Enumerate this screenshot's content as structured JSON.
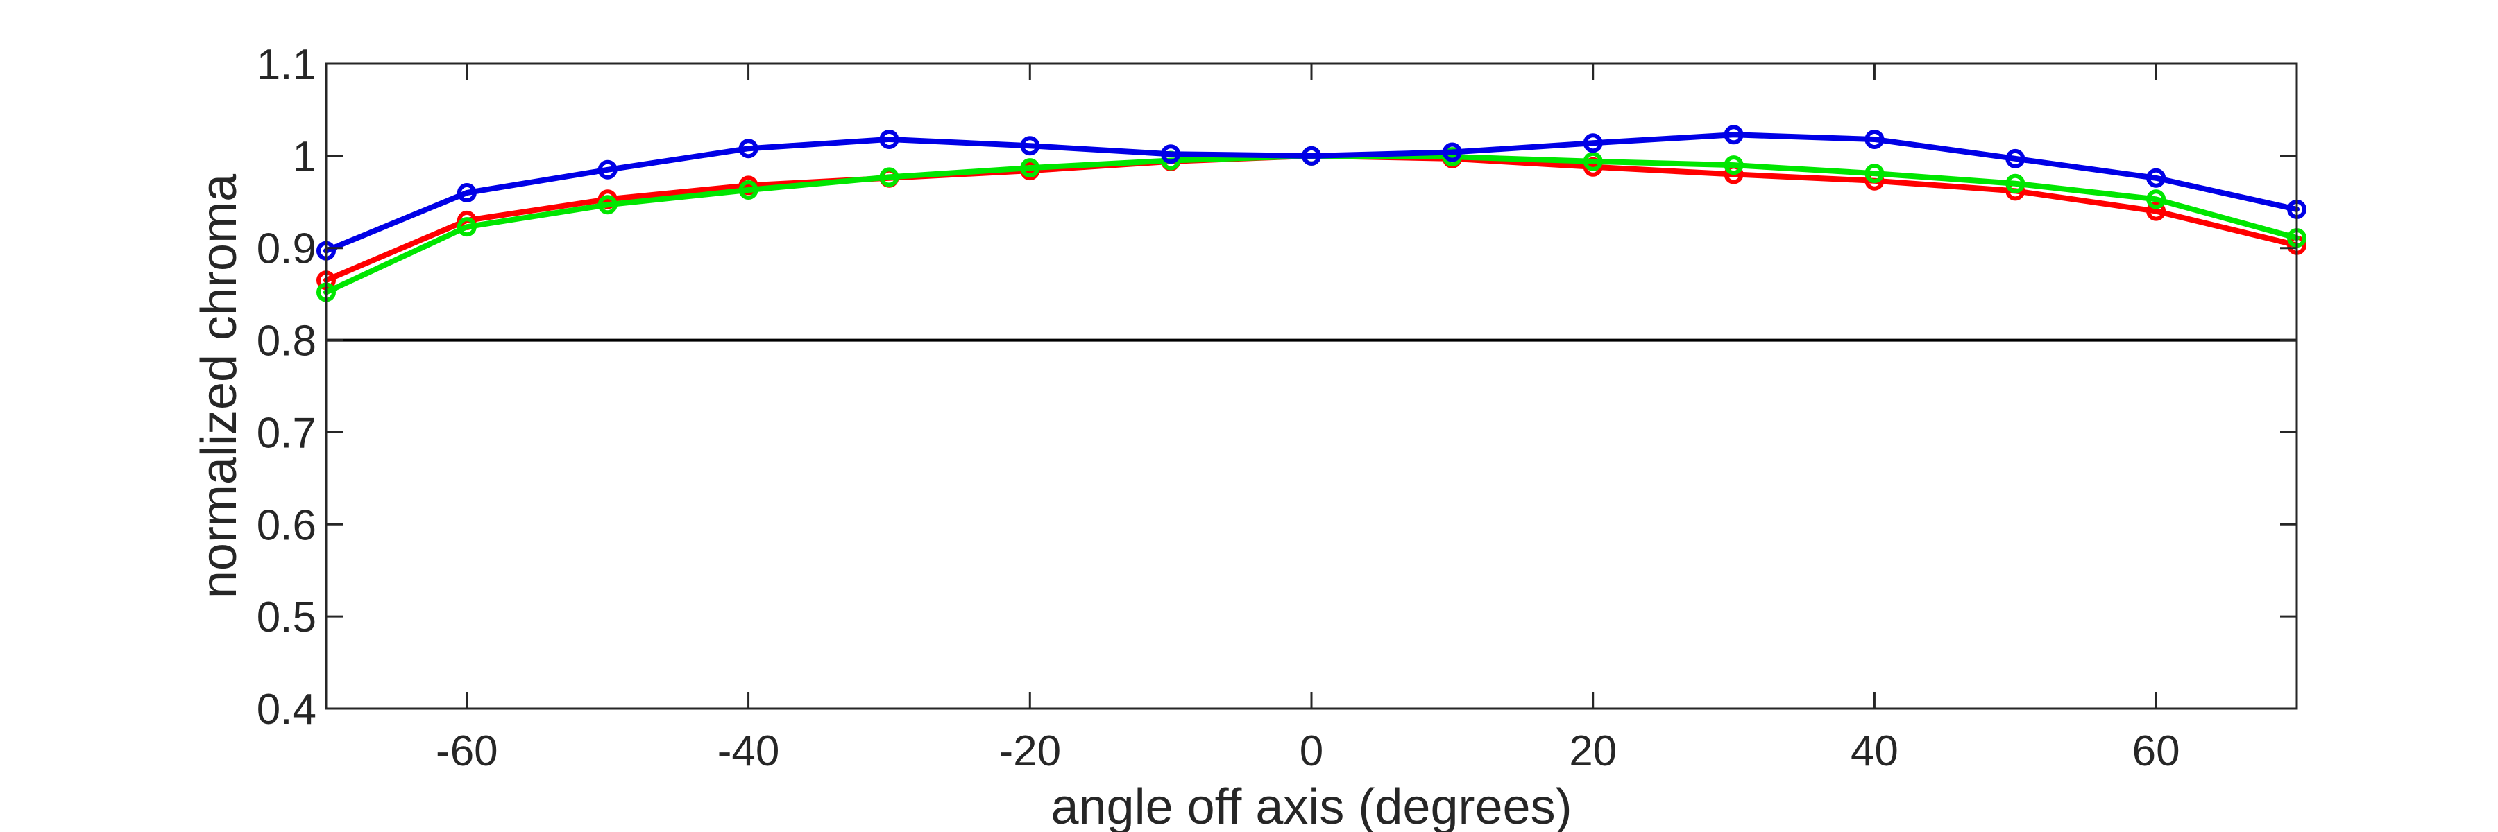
{
  "chart_data": {
    "type": "line",
    "xlabel": "angle off axis (degrees)",
    "ylabel": "normalized chroma",
    "xlim": [
      -70,
      70
    ],
    "ylim": [
      0.4,
      1.1
    ],
    "x_ticks": [
      -60,
      -40,
      -20,
      0,
      20,
      40,
      60
    ],
    "y_ticks": [
      0.4,
      0.5,
      0.6,
      0.7,
      0.8,
      0.9,
      1,
      1.1
    ],
    "y_tick_labels": [
      "0.4",
      "0.5",
      "0.6",
      "0.7",
      "0.8",
      "0.9",
      "1",
      "1.1"
    ],
    "reference_line_y": 0.8,
    "grid": false,
    "x": [
      -70,
      -60,
      -50,
      -40,
      -30,
      -20,
      -10,
      0,
      10,
      20,
      30,
      40,
      50,
      60,
      70
    ],
    "series": [
      {
        "color": "#ff0000",
        "values": [
          0.865,
          0.93,
          0.953,
          0.968,
          0.976,
          0.984,
          0.994,
          1.0,
          0.997,
          0.988,
          0.98,
          0.973,
          0.962,
          0.94,
          0.903
        ]
      },
      {
        "color": "#00e600",
        "values": [
          0.852,
          0.923,
          0.947,
          0.963,
          0.977,
          0.987,
          0.995,
          1.0,
          0.999,
          0.994,
          0.99,
          0.981,
          0.97,
          0.953,
          0.911
        ]
      },
      {
        "color": "#0000e6",
        "values": [
          0.897,
          0.96,
          0.985,
          1.008,
          1.018,
          1.011,
          1.002,
          1.0,
          1.004,
          1.014,
          1.023,
          1.018,
          0.997,
          0.976,
          0.942
        ]
      }
    ]
  }
}
